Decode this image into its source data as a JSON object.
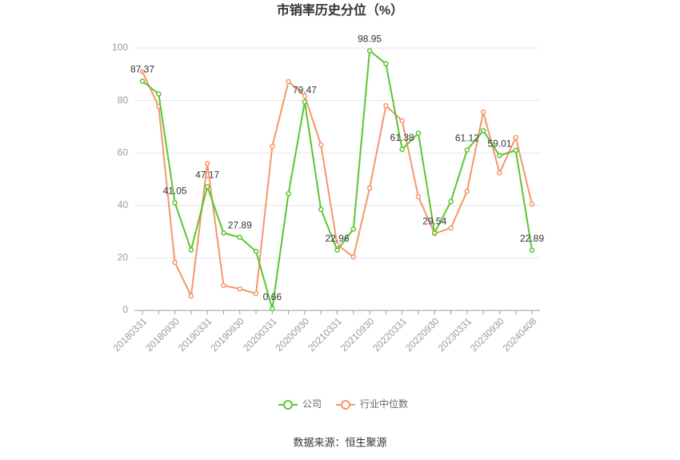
{
  "chart_data": {
    "type": "line",
    "title": "市销率历史分位（%）",
    "source": "数据来源：恒生聚源",
    "categories": [
      "20180331",
      null,
      "20180930",
      null,
      "20190331",
      null,
      "20190930",
      null,
      "20200331",
      null,
      "20200930",
      null,
      "20210331",
      null,
      "20210930",
      null,
      "20220331",
      null,
      "20220930",
      null,
      "20230331",
      null,
      "20230930",
      null,
      "20240408"
    ],
    "series": [
      {
        "name": "公司",
        "color": "#5cc432",
        "values": [
          87.37,
          82.5,
          41.05,
          23.0,
          47.17,
          29.5,
          27.89,
          22.5,
          0.66,
          44.5,
          79.47,
          38.5,
          22.96,
          31.0,
          98.95,
          94.0,
          61.38,
          67.5,
          29.54,
          41.5,
          61.12,
          68.5,
          59.01,
          61.0,
          22.89
        ],
        "value_labels": [
          "87.37",
          null,
          "41.05",
          null,
          "47.17",
          null,
          "27.89",
          null,
          "0.66",
          null,
          "79.47",
          null,
          "22.96",
          null,
          "98.95",
          null,
          "61.38",
          null,
          "29.54",
          null,
          "61.12",
          null,
          "59.01",
          null,
          "22.89"
        ]
      },
      {
        "name": "行业中位数",
        "color": "#f5966a",
        "values": [
          91.0,
          77.7,
          18.3,
          5.5,
          56.0,
          9.5,
          8.2,
          6.4,
          62.5,
          87.2,
          81.7,
          63.1,
          25.0,
          20.4,
          46.6,
          78.0,
          72.3,
          43.3,
          29.3,
          31.4,
          45.4,
          75.6,
          52.4,
          65.9,
          40.5
        ]
      }
    ],
    "ylim": [
      0,
      100
    ],
    "yticks": [
      0,
      20,
      40,
      60,
      80,
      100
    ],
    "grid": true,
    "legend": "bottom"
  }
}
